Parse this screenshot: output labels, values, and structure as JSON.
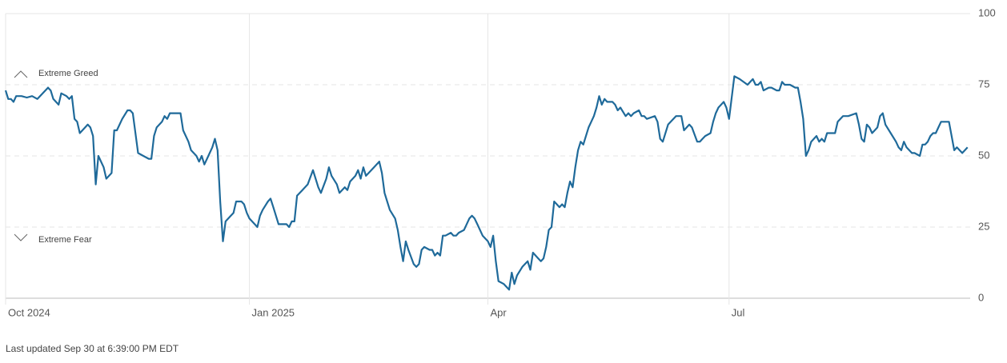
{
  "chart_data": {
    "type": "line",
    "color": "#1f6a9a",
    "xlim": [
      0,
      364
    ],
    "ylim": [
      0,
      100
    ],
    "xticks": [
      {
        "value": 0,
        "label": "Oct 2024"
      },
      {
        "value": 92,
        "label": "Jan 2025"
      },
      {
        "value": 182,
        "label": "Apr"
      },
      {
        "value": 273,
        "label": "Jul"
      }
    ],
    "yticks": [
      0,
      25,
      50,
      75,
      100
    ],
    "grid": true,
    "annotations": [
      "Extreme Greed",
      "Extreme Fear"
    ],
    "footnote": "Last updated Sep 30 at 6:39:00 PM EDT",
    "x": [
      0,
      1,
      2,
      3,
      4,
      6,
      8,
      10,
      12,
      14,
      16,
      17,
      18,
      20,
      21,
      23,
      24,
      25,
      26,
      27,
      28,
      30,
      31,
      32,
      33,
      34,
      35,
      37,
      38,
      40,
      41,
      42,
      44,
      46,
      47,
      48,
      50,
      52,
      54,
      55,
      56,
      57,
      59,
      60,
      61,
      62,
      64,
      65,
      66,
      67,
      69,
      70,
      72,
      73,
      74,
      75,
      76,
      78,
      79,
      80,
      81,
      82,
      83,
      85,
      86,
      87,
      89,
      90,
      91,
      92,
      94,
      95,
      96,
      97,
      99,
      100,
      101,
      103,
      106,
      107,
      108,
      109,
      110,
      112,
      114,
      116,
      117,
      118,
      119,
      121,
      122,
      123,
      125,
      126,
      127,
      128,
      129,
      130,
      132,
      133,
      134,
      135,
      136,
      137,
      139,
      141,
      142,
      143,
      144,
      145,
      147,
      148,
      149,
      150,
      151,
      152,
      154,
      155,
      156,
      157,
      158,
      160,
      161,
      162,
      163,
      164,
      165,
      166,
      168,
      169,
      170,
      171,
      173,
      174,
      175,
      176,
      177,
      178,
      180,
      182,
      183,
      184,
      185,
      186,
      188,
      189,
      190,
      191,
      192,
      193,
      195,
      196,
      197,
      198,
      199,
      200,
      201,
      202,
      203,
      204,
      205,
      206,
      207,
      208,
      209,
      210,
      211,
      212,
      213,
      214,
      215,
      216,
      217,
      218,
      219,
      220,
      221,
      222,
      223,
      224,
      225,
      226,
      227,
      229,
      230,
      231,
      232,
      234,
      235,
      236,
      237,
      239,
      240,
      241,
      242,
      245,
      246,
      247,
      248,
      250,
      251,
      252,
      253,
      255,
      256,
      257,
      258,
      259,
      261,
      262,
      263,
      264,
      266,
      267,
      268,
      269,
      271,
      272,
      273,
      275,
      277,
      280,
      281,
      282,
      283,
      284,
      285,
      286,
      288,
      289,
      291,
      292,
      293,
      294,
      296,
      298,
      299,
      300,
      301,
      302,
      303,
      304,
      306,
      307,
      308,
      309,
      310,
      313,
      314,
      315,
      316,
      318,
      321,
      322,
      323,
      324,
      325,
      326,
      327,
      329,
      330,
      331,
      332,
      334,
      336,
      337,
      338,
      339,
      340,
      341,
      342,
      343,
      345,
      346,
      347,
      348,
      349,
      350,
      351,
      352,
      353,
      355,
      356,
      357,
      358,
      359,
      360,
      361,
      362,
      363
    ],
    "values": [
      73,
      70,
      70,
      69,
      71,
      71,
      70.5,
      71,
      70,
      72,
      74,
      73,
      70,
      68,
      72,
      71,
      70,
      71,
      63,
      62,
      58,
      60,
      61,
      60,
      57,
      40,
      50,
      46,
      42,
      44,
      59,
      59,
      63,
      66,
      66,
      65,
      51,
      50,
      49,
      49,
      57,
      60,
      62,
      64,
      63,
      65,
      65,
      65,
      65,
      59,
      55,
      52,
      50,
      48,
      50,
      47,
      49,
      53,
      56,
      52,
      34,
      20,
      27,
      29,
      30,
      34,
      34,
      33,
      30,
      28,
      26,
      25,
      29,
      31,
      34,
      35,
      32,
      26,
      26,
      25,
      27,
      27,
      36,
      38,
      40,
      45,
      42,
      39,
      37,
      42,
      46,
      43,
      40,
      37,
      38,
      39,
      38,
      41,
      43,
      45,
      42,
      46,
      43,
      44,
      46,
      48,
      44,
      37,
      34,
      31,
      28,
      24,
      18,
      13,
      20,
      17,
      12,
      11,
      12,
      17,
      18,
      17,
      17,
      15,
      16,
      15,
      22,
      22,
      23,
      22,
      22,
      23,
      24,
      26,
      28,
      29,
      28,
      26,
      22,
      20,
      18,
      22,
      13,
      6,
      5,
      4,
      3,
      9,
      5,
      8,
      11,
      12,
      13,
      10,
      16,
      15,
      14,
      13,
      14,
      18,
      24,
      25,
      34,
      33,
      32,
      33,
      32,
      37,
      41,
      39,
      46,
      52,
      55,
      54,
      57,
      60,
      62,
      64,
      67,
      71,
      68,
      70,
      69,
      69,
      68,
      66,
      67,
      64,
      65,
      64,
      65,
      66,
      64,
      64,
      63,
      64,
      62,
      56,
      55,
      61,
      62,
      63,
      64,
      64,
      59,
      60,
      61,
      60,
      55,
      55,
      56,
      57,
      58,
      62,
      65,
      67,
      69,
      67,
      63,
      78,
      77,
      75,
      76,
      77,
      75,
      75,
      76,
      73,
      74,
      74,
      73,
      73,
      76,
      75,
      75,
      74,
      74,
      69,
      63,
      50,
      52,
      55,
      57,
      55,
      56,
      55,
      58,
      58,
      62,
      63,
      64,
      64,
      65,
      61,
      56,
      55,
      61,
      60,
      58,
      60,
      64,
      65,
      61,
      58,
      55,
      53,
      52,
      55,
      53,
      52,
      51,
      51,
      50,
      54,
      54,
      55,
      57,
      58,
      58,
      60,
      62,
      62,
      62,
      57,
      52,
      53,
      52,
      51,
      52,
      53
    ]
  }
}
